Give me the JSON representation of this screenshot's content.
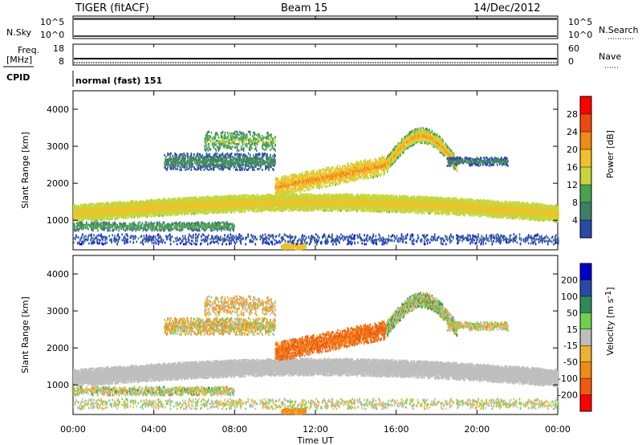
{
  "header": {
    "radar": "TIGER (fitACF)",
    "beam": "Beam 15",
    "date": "14/Dec/2012"
  },
  "strips": {
    "nsky_label": "N.Sky",
    "nsky_ticks": [
      "10^5",
      "10^0"
    ],
    "nsearch_label": "N.Search",
    "nsearch_ticks": [
      "10^5",
      "10^0"
    ],
    "freq_label_1": "Freq.",
    "freq_label_2": "[MHz]",
    "freq_ticks": [
      "18",
      "8"
    ],
    "nave_label": "Nave",
    "nave_ticks": [
      "60",
      "0"
    ],
    "cpid_label": "CPID",
    "cpid_value": "normal (fast) 151"
  },
  "x_axis": {
    "title": "Time UT",
    "ticks": [
      "00:00",
      "04:00",
      "08:00",
      "12:00",
      "16:00",
      "20:00",
      "00:00"
    ]
  },
  "colors": {
    "power_scale": [
      "#0000ff",
      "#2a4aa8",
      "#3f7f6a",
      "#49a24e",
      "#c8d43a",
      "#f2c028",
      "#f08a18",
      "#ee4a10",
      "#ff0000"
    ],
    "velocity_scale": [
      "#ff0000",
      "#f05a10",
      "#f08a18",
      "#f0b030",
      "#bebebe",
      "#bebebe",
      "#6fcf4f",
      "#2f8a5a",
      "#2a4aa8",
      "#0000cc"
    ]
  },
  "chart_data": [
    {
      "type": "heatmap",
      "name": "power",
      "ylabel": "Slant Range [km]",
      "xlabel": "",
      "xlim_hours": [
        0,
        24
      ],
      "ylim": [
        200,
        4500
      ],
      "yticks": [
        "1000",
        "2000",
        "3000",
        "4000"
      ],
      "colorbar_label": "Power [dB]",
      "colorbar_ticks": [
        "28",
        "24",
        "20",
        "16",
        "12",
        "8",
        "4"
      ],
      "clim": [
        0,
        32
      ]
    },
    {
      "type": "heatmap",
      "name": "velocity",
      "ylabel": "Slant Range [km]",
      "xlabel": "Time UT",
      "xlim_hours": [
        0,
        24
      ],
      "ylim": [
        200,
        4500
      ],
      "yticks": [
        "1000",
        "2000",
        "3000",
        "4000"
      ],
      "colorbar_label": "Velocity [m s",
      "colorbar_label_sup": "-1",
      "colorbar_ticks": [
        "200",
        "100",
        "50",
        "15",
        "-15",
        "-50",
        "-100",
        "-200"
      ],
      "clim": [
        -250,
        250
      ]
    }
  ]
}
